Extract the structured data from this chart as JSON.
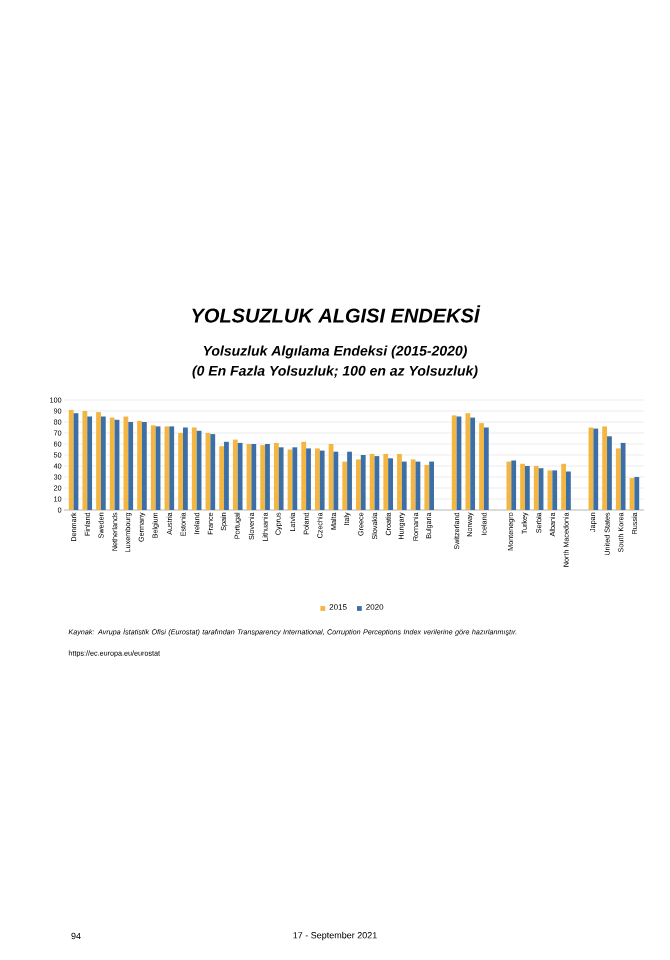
{
  "chart_data": {
    "type": "bar",
    "title": "YOLSUZLUK ALGISI ENDEKSİ",
    "subtitle": "Yolsuzluk Algılama Endeksi (2015-2020)",
    "annotations": [
      "(0 En Fazla Yolsuzluk; 100 en az Yolsuzluk)",
      "Kaynak: Avrupa İstatistik Ofisi (Eurostat) tarafından Transparency International, Corruption Perceptions Index verilerine göre hazırlanmıştır.",
      "https://ec.europa.eu/eurostat",
      "17 - September 2021",
      "94"
    ],
    "categories": [
      "Denmark",
      "Finland",
      "Sweden",
      "Netherlands",
      "Luxembourg",
      "Germany",
      "Belgium",
      "Austria",
      "Estonia",
      "Ireland",
      "France",
      "Spain",
      "Portugal",
      "Slovenia",
      "Lithuania",
      "Cyprus",
      "Latvia",
      "Poland",
      "Czechia",
      "Malta",
      "Italy",
      "Greece",
      "Slovakia",
      "Croatia",
      "Hungary",
      "Romania",
      "Bulgaria",
      null,
      "Switzerland",
      "Norway",
      "Iceland",
      null,
      "Montenegro",
      "Turkey",
      "Serbia",
      "Albania",
      "North Macedonia",
      null,
      "Japan",
      "United States",
      "South Korea",
      "Russia"
    ],
    "series": [
      {
        "name": "2015",
        "color": "#f4b642",
        "values": [
          91,
          90,
          89,
          84,
          85,
          81,
          77,
          76,
          70,
          75,
          70,
          58,
          64,
          60,
          59,
          61,
          55,
          62,
          56,
          60,
          44,
          46,
          51,
          51,
          51,
          46,
          41,
          null,
          86,
          88,
          79,
          null,
          44,
          42,
          40,
          36,
          42,
          null,
          75,
          76,
          56,
          29
        ]
      },
      {
        "name": "2020",
        "color": "#3b6fa6",
        "values": [
          88,
          85,
          85,
          82,
          80,
          80,
          76,
          76,
          75,
          72,
          69,
          62,
          61,
          60,
          60,
          57,
          57,
          56,
          54,
          53,
          53,
          50,
          49,
          47,
          44,
          44,
          44,
          null,
          85,
          84,
          75,
          null,
          45,
          40,
          38,
          36,
          35,
          null,
          74,
          67,
          61,
          30
        ]
      }
    ],
    "ylim": [
      0,
      100
    ],
    "yticks": [
      0,
      10,
      20,
      30,
      40,
      50,
      60,
      70,
      80,
      90,
      100
    ],
    "grid": "y",
    "legend": "bottom"
  }
}
